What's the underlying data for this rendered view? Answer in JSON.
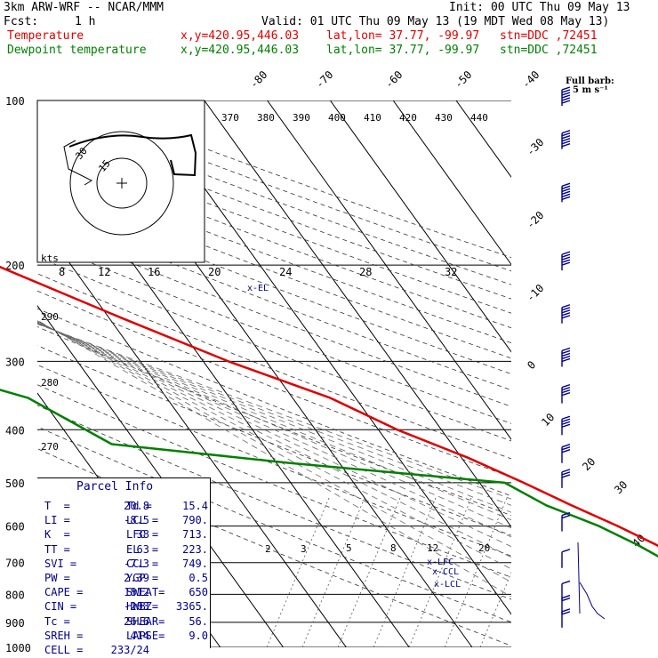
{
  "header": {
    "model": "3km ARW-WRF -- NCAR/MMM",
    "init": "Init: 00 UTC Thu 09 May 13",
    "fcst_label": "Fcst:",
    "fcst_value": "1 h",
    "valid": "Valid: 01 UTC Thu 09 May 13 (19 MDT Wed 08 May 13)",
    "temp_label": "Temperature",
    "dew_label": "Dewpoint temperature",
    "xy": "x,y=420.95,446.03",
    "latlon": "lat,lon= 37.77, -99.97",
    "stn": "stn=DDC ,72451",
    "colors": {
      "temperature": "#e00000",
      "dewpoint": "#008000",
      "text": "#000000",
      "parcel": "#00008b",
      "barbs": "#00008b"
    }
  },
  "barb_legend": {
    "title": "Full barb:",
    "value": "5 m s⁻¹"
  },
  "hodograph": {
    "units": "kts",
    "rings": [
      "15",
      "30"
    ]
  },
  "skewt": {
    "pressure_labels": [
      "100",
      "200",
      "300",
      "400",
      "500",
      "600",
      "700",
      "800",
      "900",
      "1000"
    ],
    "skewed_temp_labels": [
      "-80",
      "-70",
      "-60",
      "-50",
      "-40",
      "-30",
      "-20",
      "-10",
      "0",
      "10",
      "20",
      "30",
      "40"
    ],
    "theta_labels": [
      "370",
      "380",
      "390",
      "400",
      "410",
      "420",
      "430",
      "440"
    ],
    "mixing_labels_upper": [
      "8",
      "12",
      "16",
      "20",
      "24",
      "28",
      "32"
    ],
    "mixing_labels_lower": [
      "2",
      "3",
      "5",
      "8",
      "12",
      "20"
    ],
    "height_labels": [
      "290",
      "280",
      "270"
    ],
    "level_marks": {
      "el": "EL",
      "lfc": "LFC",
      "ccl": "CCL",
      "lcl": "LCL"
    }
  },
  "parcel_info": {
    "title": "Parcel Info",
    "rows": [
      [
        "T  =",
        "20.8",
        "Td =",
        "15.4"
      ],
      [
        "LI =",
        "-8.5",
        "LCL =",
        "790."
      ],
      [
        "K  =",
        "38",
        "LFC =",
        "713."
      ],
      [
        "TT =",
        "63",
        "EL  =",
        "223."
      ],
      [
        "SVI =",
        "-7.3",
        "CCL =",
        "749."
      ],
      [
        "PW =",
        "2.39",
        "YGP =",
        "0.5"
      ],
      [
        "CAPE =",
        "1812",
        "SWEAT=",
        "650"
      ],
      [
        "CIN =",
        "-203",
        "HWBZ=",
        "3365."
      ],
      [
        "Tc =",
        "26.6",
        "SHEAR=",
        "56."
      ],
      [
        "SREH =",
        "414",
        "LAPSE=",
        "9.0"
      ],
      [
        "CELL =",
        "233/24",
        "",
        ""
      ]
    ]
  },
  "chart_data": {
    "type": "line",
    "title": "",
    "xlabel": "",
    "ylabel": "",
    "y_axis": "pressure (hPa), log scale",
    "ylim": [
      1000,
      100
    ],
    "series": [
      {
        "name": "Temperature",
        "color": "#e00000",
        "points": [
          [
            100,
            -48
          ],
          [
            150,
            -58
          ],
          [
            200,
            -62
          ],
          [
            250,
            -48
          ],
          [
            300,
            -36
          ],
          [
            350,
            -24
          ],
          [
            400,
            -17
          ],
          [
            450,
            -9
          ],
          [
            500,
            -3
          ],
          [
            550,
            2
          ],
          [
            600,
            7
          ],
          [
            650,
            11
          ],
          [
            700,
            14
          ],
          [
            750,
            18
          ],
          [
            800,
            20
          ],
          [
            850,
            21
          ],
          [
            895,
            21
          ]
        ]
      },
      {
        "name": "Dewpoint temperature",
        "color": "#008000",
        "points": [
          [
            100,
            -83
          ],
          [
            125,
            -88
          ],
          [
            150,
            -92
          ],
          [
            200,
            -98
          ],
          [
            250,
            -95
          ],
          [
            300,
            -88
          ],
          [
            350,
            -72
          ],
          [
            425,
            -64
          ],
          [
            460,
            -38
          ],
          [
            500,
            -6
          ],
          [
            550,
            -2
          ],
          [
            600,
            4
          ],
          [
            650,
            8
          ],
          [
            700,
            11
          ],
          [
            750,
            13
          ],
          [
            800,
            14
          ],
          [
            850,
            15
          ],
          [
            890,
            15
          ]
        ]
      }
    ],
    "barbs": {
      "units": "m/s",
      "levels": [
        {
          "p": 100,
          "speed": 30
        },
        {
          "p": 120,
          "speed": 30
        },
        {
          "p": 150,
          "speed": 30
        },
        {
          "p": 200,
          "speed": 25
        },
        {
          "p": 250,
          "speed": 25
        },
        {
          "p": 300,
          "speed": 25
        },
        {
          "p": 350,
          "speed": 20
        },
        {
          "p": 400,
          "speed": 20
        },
        {
          "p": 450,
          "speed": 15
        },
        {
          "p": 500,
          "speed": 15
        },
        {
          "p": 600,
          "speed": 10
        },
        {
          "p": 700,
          "speed": 5
        },
        {
          "p": 800,
          "speed": 5
        },
        {
          "p": 850,
          "speed": 10
        },
        {
          "p": 900,
          "speed": 10
        }
      ]
    }
  }
}
